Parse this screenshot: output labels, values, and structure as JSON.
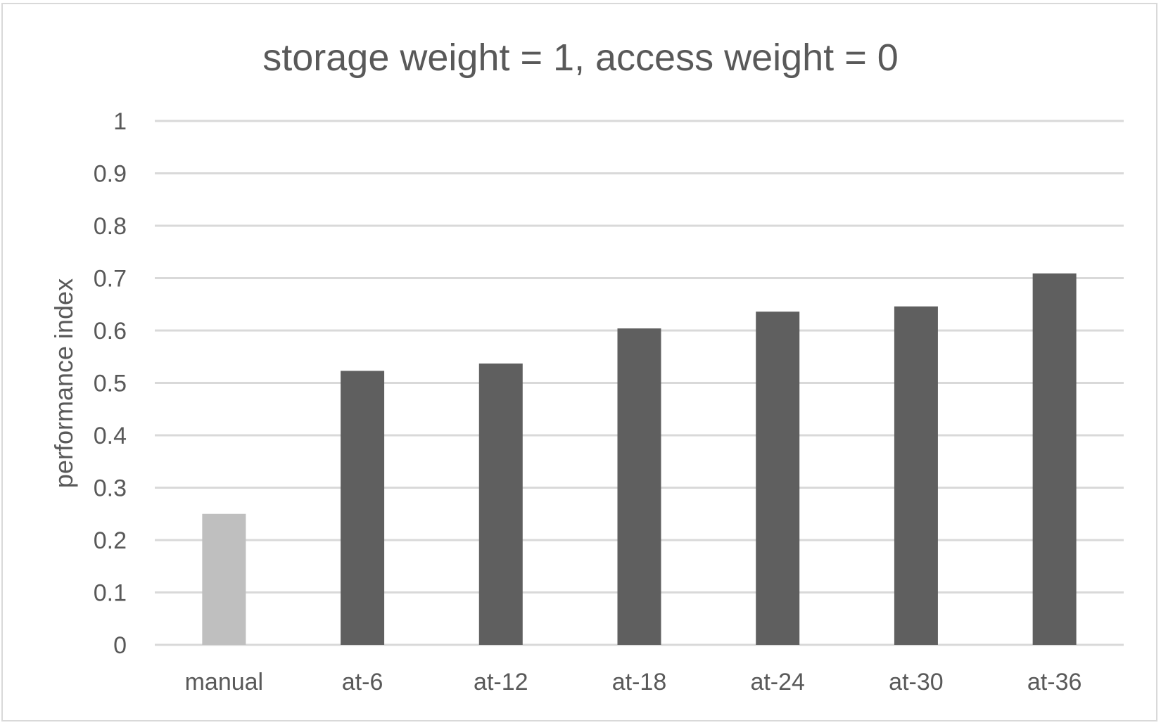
{
  "chart_data": {
    "type": "bar",
    "title": "storage weight = 1, access weight = 0",
    "xlabel": "",
    "ylabel": "performance index",
    "categories": [
      "manual",
      "at-6",
      "at-12",
      "at-18",
      "at-24",
      "at-30",
      "at-36"
    ],
    "values": [
      0.25,
      0.523,
      0.537,
      0.604,
      0.636,
      0.646,
      0.709
    ],
    "bar_colors": [
      "#bfbfbf",
      "#5f5f5f",
      "#5f5f5f",
      "#5f5f5f",
      "#5f5f5f",
      "#5f5f5f",
      "#5f5f5f"
    ],
    "ylim": [
      0,
      1
    ],
    "yticks": [
      "0",
      "0.1",
      "0.2",
      "0.3",
      "0.4",
      "0.5",
      "0.6",
      "0.7",
      "0.8",
      "0.9",
      "1"
    ],
    "grid": true,
    "legend": "none"
  }
}
